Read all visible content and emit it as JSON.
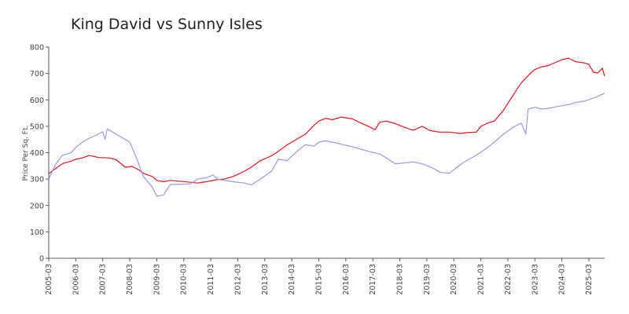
{
  "chart_data": {
    "type": "line",
    "title": "King David vs Sunny Isles",
    "xlabel": "",
    "ylabel": "Price Per Sq. Ft.",
    "ylim": [
      0,
      800
    ],
    "yticks": [
      0,
      100,
      200,
      300,
      400,
      500,
      600,
      700,
      800
    ],
    "xlim": [
      "2005-03",
      "2025-10"
    ],
    "xticks": [
      "2005-03",
      "2006-03",
      "2007-03",
      "2008-03",
      "2009-03",
      "2010-03",
      "2011-03",
      "2012-03",
      "2013-03",
      "2014-03",
      "2015-03",
      "2016-03",
      "2017-03",
      "2018-03",
      "2019-03",
      "2020-03",
      "2021-03",
      "2022-03",
      "2023-03",
      "2024-03",
      "2025-03"
    ],
    "grid": false,
    "legend": "none",
    "series": [
      {
        "color": "#e8141c",
        "points": [
          [
            "2005-03",
            320
          ],
          [
            "2005-06",
            340
          ],
          [
            "2005-09",
            358
          ],
          [
            "2006-01",
            368
          ],
          [
            "2006-03",
            375
          ],
          [
            "2006-06",
            380
          ],
          [
            "2006-09",
            390
          ],
          [
            "2007-01",
            382
          ],
          [
            "2007-06",
            380
          ],
          [
            "2007-09",
            373
          ],
          [
            "2008-01",
            345
          ],
          [
            "2008-04",
            348
          ],
          [
            "2008-07",
            335
          ],
          [
            "2008-09",
            322
          ],
          [
            "2009-01",
            310
          ],
          [
            "2009-03",
            295
          ],
          [
            "2009-06",
            290
          ],
          [
            "2009-09",
            295
          ],
          [
            "2010-01",
            292
          ],
          [
            "2010-06",
            288
          ],
          [
            "2010-09",
            285
          ],
          [
            "2011-01",
            290
          ],
          [
            "2011-06",
            298
          ],
          [
            "2011-09",
            300
          ],
          [
            "2012-01",
            310
          ],
          [
            "2012-06",
            330
          ],
          [
            "2012-09",
            345
          ],
          [
            "2013-01",
            370
          ],
          [
            "2013-06",
            388
          ],
          [
            "2013-09",
            405
          ],
          [
            "2014-01",
            430
          ],
          [
            "2014-06",
            455
          ],
          [
            "2014-09",
            470
          ],
          [
            "2015-01",
            505
          ],
          [
            "2015-03",
            520
          ],
          [
            "2015-06",
            530
          ],
          [
            "2015-09",
            525
          ],
          [
            "2016-01",
            535
          ],
          [
            "2016-06",
            528
          ],
          [
            "2016-09",
            515
          ],
          [
            "2017-01",
            500
          ],
          [
            "2017-04",
            487
          ],
          [
            "2017-06",
            515
          ],
          [
            "2017-09",
            520
          ],
          [
            "2018-01",
            510
          ],
          [
            "2018-04",
            500
          ],
          [
            "2018-07",
            490
          ],
          [
            "2018-09",
            485
          ],
          [
            "2019-01",
            500
          ],
          [
            "2019-04",
            485
          ],
          [
            "2019-07",
            480
          ],
          [
            "2019-09",
            478
          ],
          [
            "2020-01",
            478
          ],
          [
            "2020-06",
            473
          ],
          [
            "2020-09",
            476
          ],
          [
            "2021-01",
            478
          ],
          [
            "2021-03",
            500
          ],
          [
            "2021-06",
            512
          ],
          [
            "2021-09",
            520
          ],
          [
            "2022-01",
            560
          ],
          [
            "2022-04",
            600
          ],
          [
            "2022-07",
            640
          ],
          [
            "2022-09",
            665
          ],
          [
            "2023-01",
            700
          ],
          [
            "2023-03",
            715
          ],
          [
            "2023-06",
            725
          ],
          [
            "2023-09",
            730
          ],
          [
            "2024-01",
            745
          ],
          [
            "2024-03",
            752
          ],
          [
            "2024-06",
            758
          ],
          [
            "2024-09",
            745
          ],
          [
            "2025-01",
            740
          ],
          [
            "2025-03",
            735
          ],
          [
            "2025-05",
            705
          ],
          [
            "2025-07",
            702
          ],
          [
            "2025-09",
            720
          ],
          [
            "2025-10",
            690
          ]
        ]
      },
      {
        "color": "#9999ee",
        "points": [
          [
            "2005-03",
            300
          ],
          [
            "2005-06",
            355
          ],
          [
            "2005-09",
            390
          ],
          [
            "2006-01",
            400
          ],
          [
            "2006-03",
            420
          ],
          [
            "2006-06",
            440
          ],
          [
            "2006-09",
            455
          ],
          [
            "2007-01",
            470
          ],
          [
            "2007-03",
            480
          ],
          [
            "2007-04",
            450
          ],
          [
            "2007-05",
            490
          ],
          [
            "2007-09",
            470
          ],
          [
            "2008-01",
            450
          ],
          [
            "2008-03",
            440
          ],
          [
            "2008-06",
            380
          ],
          [
            "2008-09",
            310
          ],
          [
            "2009-01",
            270
          ],
          [
            "2009-03",
            235
          ],
          [
            "2009-06",
            240
          ],
          [
            "2009-09",
            280
          ],
          [
            "2010-01",
            280
          ],
          [
            "2010-06",
            282
          ],
          [
            "2010-09",
            300
          ],
          [
            "2011-01",
            305
          ],
          [
            "2011-04",
            315
          ],
          [
            "2011-06",
            300
          ],
          [
            "2011-09",
            295
          ],
          [
            "2012-01",
            290
          ],
          [
            "2012-06",
            285
          ],
          [
            "2012-09",
            278
          ],
          [
            "2013-01",
            300
          ],
          [
            "2013-06",
            330
          ],
          [
            "2013-09",
            375
          ],
          [
            "2014-01",
            370
          ],
          [
            "2014-06",
            410
          ],
          [
            "2014-09",
            430
          ],
          [
            "2015-01",
            425
          ],
          [
            "2015-03",
            440
          ],
          [
            "2015-06",
            445
          ],
          [
            "2015-09",
            440
          ],
          [
            "2016-01",
            432
          ],
          [
            "2016-06",
            422
          ],
          [
            "2016-09",
            415
          ],
          [
            "2017-01",
            405
          ],
          [
            "2017-06",
            395
          ],
          [
            "2017-09",
            380
          ],
          [
            "2018-01",
            358
          ],
          [
            "2018-06",
            362
          ],
          [
            "2018-09",
            365
          ],
          [
            "2019-01",
            358
          ],
          [
            "2019-06",
            340
          ],
          [
            "2019-09",
            325
          ],
          [
            "2020-01",
            322
          ],
          [
            "2020-03",
            335
          ],
          [
            "2020-06",
            355
          ],
          [
            "2020-09",
            372
          ],
          [
            "2021-01",
            390
          ],
          [
            "2021-06",
            420
          ],
          [
            "2021-09",
            440
          ],
          [
            "2022-01",
            470
          ],
          [
            "2022-06",
            500
          ],
          [
            "2022-09",
            512
          ],
          [
            "2022-11",
            470
          ],
          [
            "2022-12",
            565
          ],
          [
            "2023-03",
            572
          ],
          [
            "2023-06",
            565
          ],
          [
            "2023-09",
            568
          ],
          [
            "2024-01",
            575
          ],
          [
            "2024-06",
            582
          ],
          [
            "2024-09",
            590
          ],
          [
            "2025-01",
            595
          ],
          [
            "2025-06",
            610
          ],
          [
            "2025-10",
            625
          ]
        ]
      }
    ]
  }
}
